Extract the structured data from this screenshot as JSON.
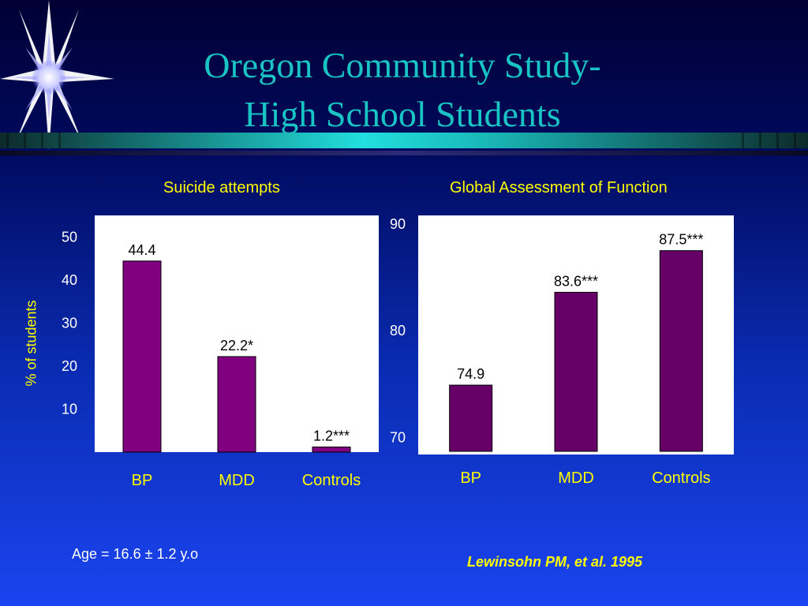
{
  "title_lines": [
    "Oregon Community Study-",
    "High School Students"
  ],
  "left_chart_title": "Suicide attempts",
  "right_chart_title": "Global Assessment of Function",
  "y_axis_label": "% of students",
  "age_note": "Age = 16.6 ± 1.2 y.o",
  "citation": "Lewinsohn PM, et al. 1995",
  "colors": {
    "title": "#19c4c4",
    "labels": "#ffff00",
    "bar_left": "#800080",
    "bar_right": "#660066",
    "panel": "#ffffff"
  },
  "chart_data": [
    {
      "type": "bar",
      "title": "Suicide attempts",
      "ylabel": "% of students",
      "categories": [
        "BP",
        "MDD",
        "Controls"
      ],
      "values": [
        44.4,
        22.2,
        1.2
      ],
      "data_labels": [
        "44.4",
        "22.2*",
        "1.2***"
      ],
      "ylim": [
        0,
        55
      ],
      "yticks": [
        10,
        20,
        30,
        40,
        50
      ],
      "grid": false
    },
    {
      "type": "bar",
      "title": "Global Assessment of Function",
      "categories": [
        "BP",
        "MDD",
        "Controls"
      ],
      "values": [
        74.9,
        83.6,
        87.5
      ],
      "data_labels": [
        "74.9",
        "83.6***",
        "87.5***"
      ],
      "ylim": [
        68.4,
        90.8
      ],
      "yticks": [
        70,
        80,
        90
      ],
      "grid": false
    }
  ]
}
